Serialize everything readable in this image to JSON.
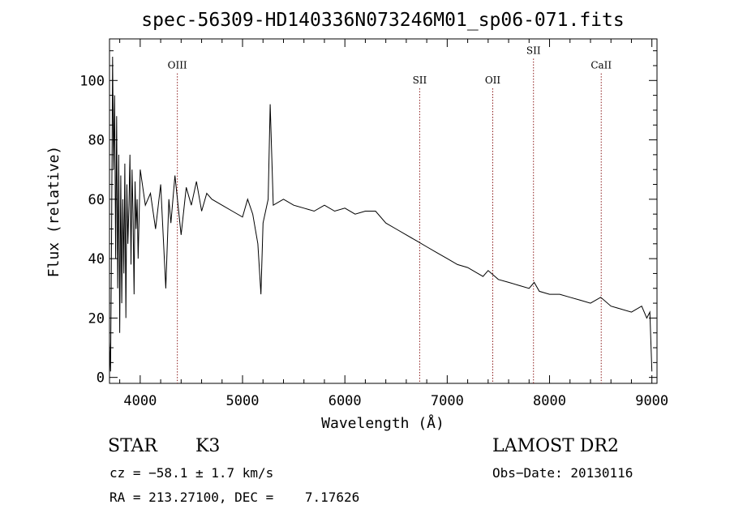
{
  "chart_data": {
    "type": "line",
    "title": "spec-56309-HD140336N073246M01_sp06-071.fits",
    "xlabel": "Wavelength (Å)",
    "ylabel": "Flux (relative)",
    "xlim": [
      3700,
      9050
    ],
    "ylim": [
      -2,
      114
    ],
    "xticks": [
      4000,
      5000,
      6000,
      7000,
      8000,
      9000
    ],
    "yticks": [
      0,
      20,
      40,
      60,
      80,
      100
    ],
    "grid": false,
    "line_color": "#000000",
    "marker_color": "#8b1a1a",
    "series": [
      {
        "x": [
          3700,
          3710,
          3720,
          3730,
          3740,
          3750,
          3760,
          3770,
          3780,
          3790,
          3800,
          3810,
          3820,
          3830,
          3840,
          3850,
          3860,
          3870,
          3880,
          3890,
          3900,
          3910,
          3920,
          3930,
          3940,
          3950,
          3960,
          3970,
          3980,
          3990,
          4000,
          4050,
          4100,
          4150,
          4200,
          4250,
          4280,
          4300,
          4340,
          4400,
          4450,
          4500,
          4550,
          4600,
          4650,
          4700,
          4800,
          4900,
          5000,
          5050,
          5100,
          5150,
          5180,
          5200,
          5250,
          5270,
          5300,
          5400,
          5500,
          5600,
          5700,
          5800,
          5900,
          6000,
          6100,
          6200,
          6300,
          6400,
          6500,
          6600,
          6700,
          6800,
          6900,
          7000,
          7100,
          7200,
          7300,
          7350,
          7400,
          7500,
          7600,
          7700,
          7800,
          7850,
          7900,
          8000,
          8100,
          8200,
          8300,
          8400,
          8500,
          8600,
          8700,
          8800,
          8900,
          8950,
          8980,
          9000
        ],
        "values": [
          12,
          2,
          45,
          108,
          70,
          95,
          40,
          88,
          30,
          75,
          15,
          68,
          25,
          60,
          35,
          72,
          20,
          65,
          45,
          58,
          75,
          38,
          70,
          55,
          28,
          66,
          50,
          60,
          40,
          55,
          70,
          58,
          62,
          50,
          65,
          30,
          60,
          52,
          68,
          48,
          64,
          58,
          66,
          56,
          62,
          60,
          58,
          56,
          54,
          60,
          55,
          45,
          28,
          52,
          60,
          92,
          58,
          60,
          58,
          57,
          56,
          58,
          56,
          57,
          55,
          56,
          56,
          52,
          50,
          48,
          46,
          44,
          42,
          40,
          38,
          37,
          35,
          34,
          36,
          33,
          32,
          31,
          30,
          32,
          29,
          28,
          28,
          27,
          26,
          25,
          27,
          24,
          23,
          22,
          24,
          20,
          22,
          2
        ]
      }
    ],
    "annotations": [
      {
        "label": "OIII",
        "x": 4363,
        "label_y": 104
      },
      {
        "label": "SII",
        "x": 6731,
        "label_y": 99
      },
      {
        "label": "OII",
        "x": 7445,
        "label_y": 99
      },
      {
        "label": "SII",
        "x": 7843,
        "label_y": 109
      },
      {
        "label": "CaII",
        "x": 8505,
        "label_y": 104
      }
    ]
  },
  "info": {
    "object_class": "STAR",
    "subclass": "K3",
    "survey": "LAMOST DR2",
    "redshift": "cz = −58.1 ± 1.7 km/s",
    "obs_date": "Obs−Date: 20130116",
    "coords": "RA = 213.27100, DEC =    7.17626"
  }
}
